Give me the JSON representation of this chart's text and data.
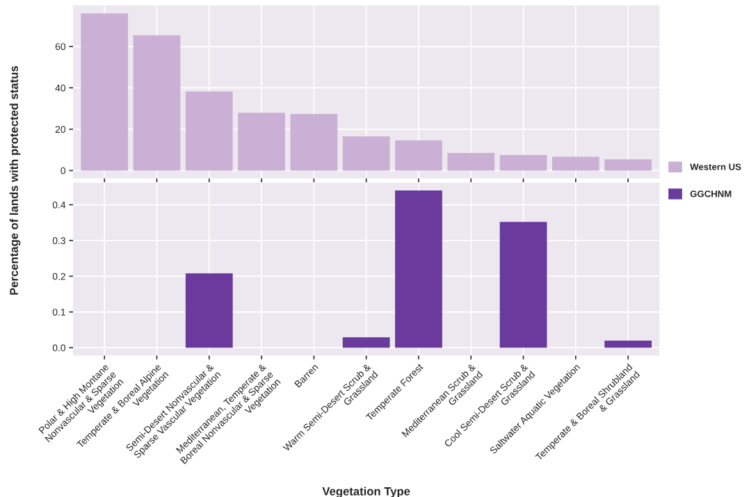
{
  "chart_data": [
    {
      "type": "bar",
      "ylabel": "Percentage of lands with protected status",
      "categories": [
        null,
        null,
        null,
        null,
        null,
        null,
        null,
        null,
        null,
        null,
        null
      ],
      "series": [
        {
          "name": "Western US",
          "color": "#cbb0d6",
          "values": [
            76.0,
            65.4,
            38.3,
            27.9,
            27.3,
            16.5,
            14.6,
            8.5,
            7.5,
            6.7,
            5.4
          ]
        }
      ],
      "ylim": [
        -3.8,
        79.8
      ],
      "yticks": [
        0,
        20,
        40,
        60
      ],
      "grid": true,
      "legend": "bottom right",
      "tick_labels": "y"
    },
    {
      "type": "bar",
      "xlabel": "Vegetation Type",
      "categories": [
        "Polar & High Montane\nNonvascular & Sparse\nVegetation",
        "Temperate & Boreal Alpine\nVegetation",
        "Semi-Desert Nonvascular &\nSparse Vascular Vegetation",
        "Mediterranean, Temperate &\nBoreal Nonvascular & Sparse\nVegetation",
        "Barren",
        "Warm Semi-Desert Scrub &\nGrassland",
        "Temperate Forest",
        "Mediterranean Scrub &\nGrassland",
        "Cool Semi-Desert Scrub &\nGrassland",
        "Saltwater Aquatic Vegetation",
        "Temperate & Boreal Shrubland\n& Grassland"
      ],
      "series": [
        {
          "name": "GGCHNM",
          "color": "#6a3a9c",
          "values": [
            0,
            0,
            0.208,
            0,
            0,
            0.029,
            0.44,
            0,
            0.352,
            0,
            0.02
          ]
        }
      ],
      "ylim": [
        -0.022,
        0.462
      ],
      "yticks": [
        {
          "value": 0,
          "label": "0.0"
        },
        0.1,
        0.2,
        0.3,
        0.4
      ],
      "grid": true,
      "legend": "top right"
    }
  ]
}
